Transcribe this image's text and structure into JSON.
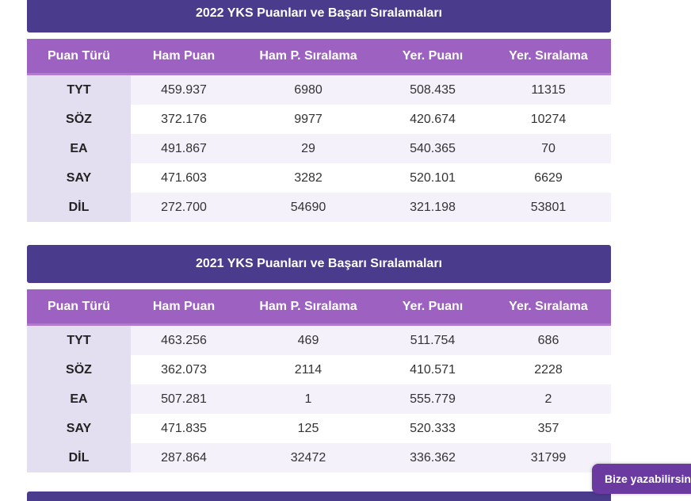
{
  "colors": {
    "title_bg": "#4b3b8c",
    "header_bg": "#9d62c1",
    "label_bg": "#e4dff0",
    "row_alt_bg": "#f4f1fa",
    "float_btn_bg": "#6a3aa0"
  },
  "headers": [
    "Puan Türü",
    "Ham Puan",
    "Ham P. Sıralama",
    "Yer. Puanı",
    "Yer. Sıralama"
  ],
  "tables": [
    {
      "title": "2022 YKS Puanları ve Başarı Sıralamaları",
      "rows": [
        [
          "TYT",
          "459.937",
          "6980",
          "508.435",
          "11315"
        ],
        [
          "SÖZ",
          "372.176",
          "9977",
          "420.674",
          "10274"
        ],
        [
          "EA",
          "491.867",
          "29",
          "540.365",
          "70"
        ],
        [
          "SAY",
          "471.603",
          "3282",
          "520.101",
          "6629"
        ],
        [
          "DİL",
          "272.700",
          "54690",
          "321.198",
          "53801"
        ]
      ]
    },
    {
      "title": "2021 YKS Puanları ve Başarı Sıralamaları",
      "rows": [
        [
          "TYT",
          "463.256",
          "469",
          "511.754",
          "686"
        ],
        [
          "SÖZ",
          "362.073",
          "2114",
          "410.571",
          "2228"
        ],
        [
          "EA",
          "507.281",
          "1",
          "555.779",
          "2"
        ],
        [
          "SAY",
          "471.835",
          "125",
          "520.333",
          "357"
        ],
        [
          "DİL",
          "287.864",
          "32472",
          "336.362",
          "31799"
        ]
      ]
    }
  ],
  "float_button": {
    "label": "Bize yazabilirsiniz"
  }
}
